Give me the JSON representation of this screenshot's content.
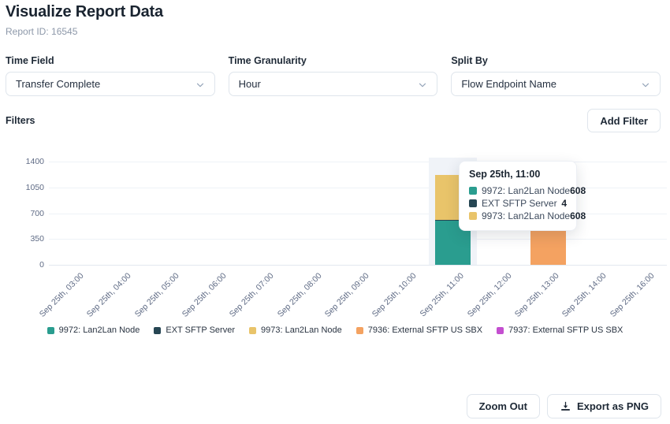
{
  "header": {
    "title": "Visualize Report Data",
    "report_id": "Report ID: 16545"
  },
  "controls": [
    {
      "label": "Time Field",
      "value": "Transfer Complete"
    },
    {
      "label": "Time Granularity",
      "value": "Hour"
    },
    {
      "label": "Split By",
      "value": "Flow Endpoint Name"
    }
  ],
  "filters": {
    "label": "Filters",
    "add_filter_label": "Add Filter"
  },
  "chart_data": {
    "type": "bar",
    "stacked": true,
    "title": "",
    "xlabel": "",
    "ylabel": "",
    "categories": [
      "Sep 25th, 03:00",
      "Sep 25th, 04:00",
      "Sep 25th, 05:00",
      "Sep 25th, 06:00",
      "Sep 25th, 07:00",
      "Sep 25th, 08:00",
      "Sep 25th, 09:00",
      "Sep 25th, 10:00",
      "Sep 25th, 11:00",
      "Sep 25th, 12:00",
      "Sep 25th, 13:00",
      "Sep 25th, 14:00",
      "Sep 25th, 16:00"
    ],
    "series": [
      {
        "name": "9972: Lan2Lan Node",
        "color": "#2a9d8f",
        "values": [
          0,
          0,
          0,
          0,
          0,
          0,
          0,
          0,
          608,
          0,
          0,
          0,
          0
        ]
      },
      {
        "name": "EXT SFTP Server",
        "color": "#264653",
        "values": [
          0,
          0,
          0,
          0,
          0,
          0,
          0,
          0,
          4,
          0,
          0,
          0,
          0
        ]
      },
      {
        "name": "9973: Lan2Lan Node",
        "color": "#e9c46a",
        "values": [
          0,
          0,
          0,
          0,
          0,
          0,
          0,
          0,
          608,
          0,
          0,
          0,
          0
        ]
      },
      {
        "name": "7936: External SFTP US SBX",
        "color": "#f4a261",
        "values": [
          0,
          0,
          0,
          0,
          0,
          0,
          0,
          0,
          0,
          0,
          610,
          0,
          0
        ]
      },
      {
        "name": "7937: External SFTP US SBX",
        "color": "#c44fd0",
        "values": [
          0,
          0,
          0,
          0,
          0,
          0,
          0,
          0,
          0,
          0,
          30,
          0,
          0
        ]
      }
    ],
    "yticks": [
      0,
      350,
      700,
      1050,
      1400
    ],
    "ylim": [
      0,
      1400
    ],
    "grid": true,
    "legend_position": "bottom",
    "highlight_category_index": 8
  },
  "tooltip": {
    "title": "Sep 25th, 11:00",
    "rows": [
      {
        "label": "9972: Lan2Lan Node",
        "value": "608",
        "color": "#2a9d8f"
      },
      {
        "label": "EXT SFTP Server",
        "value": "4",
        "color": "#264653"
      },
      {
        "label": "9973: Lan2Lan Node",
        "value": "608",
        "color": "#e9c46a"
      }
    ]
  },
  "footer": {
    "zoom_out_label": "Zoom Out",
    "export_label": "Export as PNG"
  },
  "icons": {
    "select_chevron": "chevron-down",
    "export_button": "download"
  },
  "colors": {
    "highlight_column": "#f0f3f8",
    "axis_text": "#5f6b85",
    "border": "#dfe5ec",
    "text_dark": "#1e2936",
    "text_muted": "#8d98a9"
  }
}
